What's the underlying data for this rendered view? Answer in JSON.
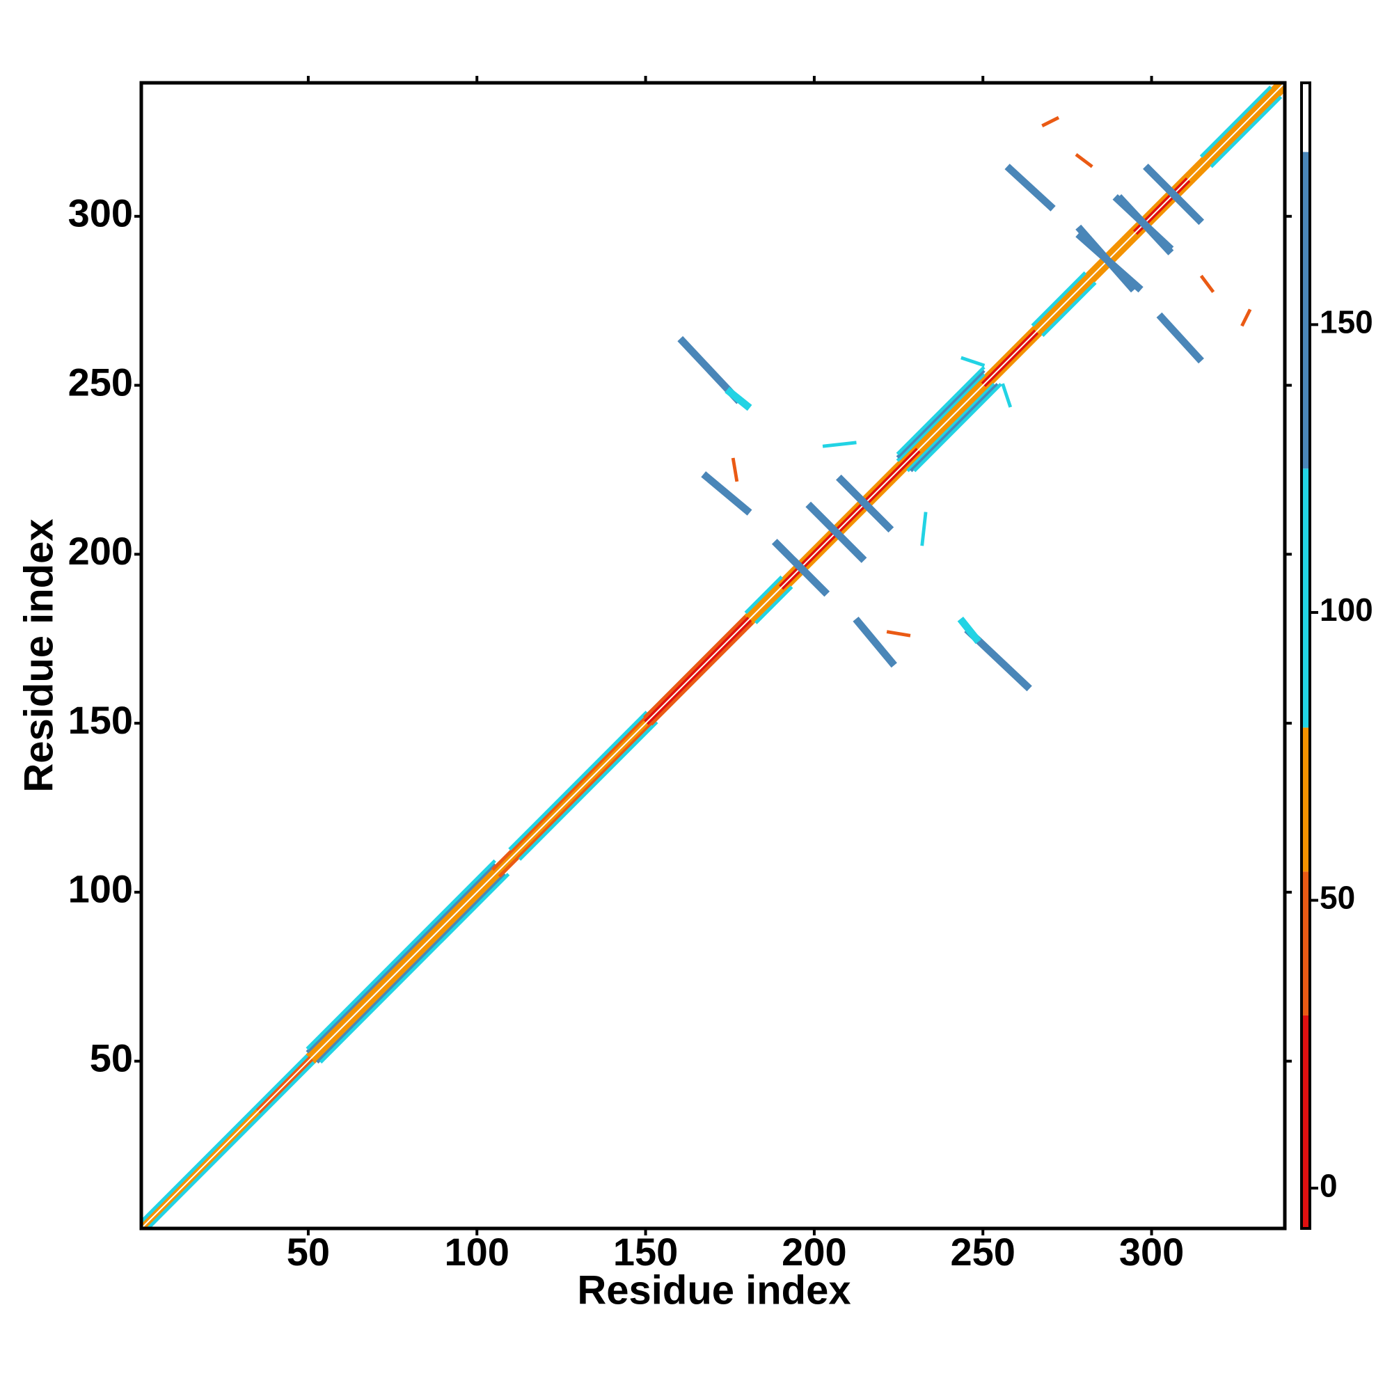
{
  "chart_data": {
    "type": "heatmap",
    "x_label": "Residue index",
    "y_label": "Residue index",
    "xlim": [
      0.5,
      339.5
    ],
    "ylim": [
      0.5,
      339.5
    ],
    "xticks": [
      50,
      100,
      150,
      200,
      250,
      300
    ],
    "yticks": [
      50,
      100,
      150,
      200,
      250,
      300
    ],
    "symmetric": true,
    "colorbar": {
      "lim": [
        -7,
        192
      ],
      "ticks": [
        0,
        50,
        100,
        150
      ],
      "bands": [
        {
          "from": -7,
          "to": 30,
          "color": "#e01010"
        },
        {
          "from": 30,
          "to": 55,
          "color": "#ea5a14"
        },
        {
          "from": 55,
          "to": 80,
          "color": "#f39200"
        },
        {
          "from": 80,
          "to": 125,
          "color": "#22d3e4"
        },
        {
          "from": 125,
          "to": 180,
          "color": "#4a86b8"
        },
        {
          "from": 180,
          "to": 192,
          "color": "#ffffff"
        }
      ]
    },
    "segments": [
      {
        "from": [
          1,
          1
        ],
        "to": [
          339,
          339
        ],
        "value": 185,
        "width": 1
      },
      {
        "from": [
          2,
          1
        ],
        "to": [
          339,
          338
        ],
        "value": 65,
        "width": 1
      },
      {
        "from": [
          36,
          35
        ],
        "to": [
          51,
          50
        ],
        "value": 42,
        "width": 1
      },
      {
        "from": [
          151,
          150
        ],
        "to": [
          181,
          180
        ],
        "value": 10,
        "width": 1
      },
      {
        "from": [
          191,
          190
        ],
        "to": [
          231,
          230
        ],
        "value": 10,
        "width": 1
      },
      {
        "from": [
          251,
          250
        ],
        "to": [
          266,
          265
        ],
        "value": 10,
        "width": 1
      },
      {
        "from": [
          296,
          295
        ],
        "to": [
          311,
          310
        ],
        "value": 10,
        "width": 1
      },
      {
        "from": [
          3,
          1
        ],
        "to": [
          52,
          50
        ],
        "value": 100,
        "width": 1
      },
      {
        "from": [
          52,
          50
        ],
        "to": [
          107,
          105
        ],
        "value": 65,
        "width": 1
      },
      {
        "from": [
          53,
          50
        ],
        "to": [
          108,
          105
        ],
        "value": 150,
        "width": 1
      },
      {
        "from": [
          54,
          50
        ],
        "to": [
          109,
          105
        ],
        "value": 100,
        "width": 1
      },
      {
        "from": [
          107,
          105
        ],
        "to": [
          152,
          150
        ],
        "value": 42,
        "width": 1
      },
      {
        "from": [
          113,
          110
        ],
        "to": [
          153,
          150
        ],
        "value": 100,
        "width": 1
      },
      {
        "from": [
          152,
          150
        ],
        "to": [
          182,
          180
        ],
        "value": 42,
        "width": 1
      },
      {
        "from": [
          182,
          180
        ],
        "to": [
          339,
          337
        ],
        "value": 65,
        "width": 1
      },
      {
        "from": [
          183,
          180
        ],
        "to": [
          193,
          190
        ],
        "value": 100,
        "width": 1
      },
      {
        "from": [
          228,
          225
        ],
        "to": [
          253,
          250
        ],
        "value": 100,
        "width": 1
      },
      {
        "from": [
          229,
          225
        ],
        "to": [
          254,
          250
        ],
        "value": 150,
        "width": 1
      },
      {
        "from": [
          230,
          225
        ],
        "to": [
          255,
          250
        ],
        "value": 100,
        "width": 1
      },
      {
        "from": [
          268,
          265
        ],
        "to": [
          283,
          280
        ],
        "value": 100,
        "width": 1
      },
      {
        "from": [
          318,
          315
        ],
        "to": [
          338,
          335
        ],
        "value": 100,
        "width": 1
      },
      {
        "from": [
          161,
          263
        ],
        "to": [
          177,
          246
        ],
        "value": 150,
        "width": 2.2
      },
      {
        "from": [
          175,
          248
        ],
        "to": [
          180,
          244
        ],
        "value": 100,
        "width": 2.2
      },
      {
        "from": [
          168,
          223
        ],
        "to": [
          180,
          213
        ],
        "value": 150,
        "width": 2.2
      },
      {
        "from": [
          258,
          314
        ],
        "to": [
          270,
          303
        ],
        "value": 150,
        "width": 2.2
      },
      {
        "from": [
          199,
          214
        ],
        "to": [
          214,
          199
        ],
        "value": 150,
        "width": 2.2
      },
      {
        "from": [
          208,
          222
        ],
        "to": [
          222,
          208
        ],
        "value": 150,
        "width": 2.2
      },
      {
        "from": [
          189,
          203
        ],
        "to": [
          203,
          189
        ],
        "value": 150,
        "width": 2.2
      },
      {
        "from": [
          279,
          294
        ],
        "to": [
          296,
          279
        ],
        "value": 150,
        "width": 2.2
      },
      {
        "from": [
          299,
          314
        ],
        "to": [
          314,
          299
        ],
        "value": 150,
        "width": 2.2
      },
      {
        "from": [
          291,
          305
        ],
        "to": [
          305,
          290
        ],
        "value": 150,
        "width": 2.2
      },
      {
        "from": [
          176,
          228
        ],
        "to": [
          177,
          222
        ],
        "value": 42,
        "width": 1
      },
      {
        "from": [
          203,
          232
        ],
        "to": [
          212,
          233
        ],
        "value": 100,
        "width": 1
      },
      {
        "from": [
          244,
          258
        ],
        "to": [
          250,
          256
        ],
        "value": 100,
        "width": 1
      },
      {
        "from": [
          268,
          327
        ],
        "to": [
          272,
          329
        ],
        "value": 42,
        "width": 1
      },
      {
        "from": [
          315,
          282
        ],
        "to": [
          318,
          278
        ],
        "value": 42,
        "width": 1
      }
    ]
  }
}
